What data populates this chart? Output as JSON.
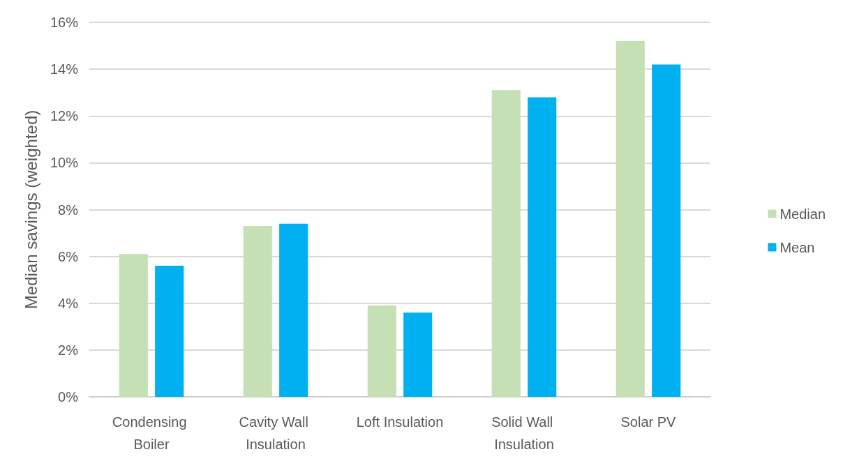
{
  "chart_data": {
    "type": "bar",
    "ylabel": "Median savings (weighted)",
    "categories": [
      "Condensing Boiler",
      "Cavity Wall Insulation",
      "Loft Insulation",
      "Solid Wall Insulation",
      "Solar PV"
    ],
    "series": [
      {
        "name": "Median",
        "color": "#c5e0b4",
        "values": [
          6.1,
          7.3,
          3.9,
          13.1,
          15.2
        ]
      },
      {
        "name": "Mean",
        "color": "#00b0f0",
        "values": [
          5.6,
          7.4,
          3.6,
          12.8,
          14.2
        ]
      }
    ],
    "ylim": [
      0,
      16
    ],
    "yticks": [
      {
        "value": 0,
        "label": "0%"
      },
      {
        "value": 2,
        "label": "2%"
      },
      {
        "value": 4,
        "label": "4%"
      },
      {
        "value": 6,
        "label": "6%"
      },
      {
        "value": 8,
        "label": "8%"
      },
      {
        "value": 10,
        "label": "10%"
      },
      {
        "value": 12,
        "label": "12%"
      },
      {
        "value": 14,
        "label": "14%"
      },
      {
        "value": 16,
        "label": "16%"
      }
    ],
    "grid": true,
    "legend": "right"
  }
}
